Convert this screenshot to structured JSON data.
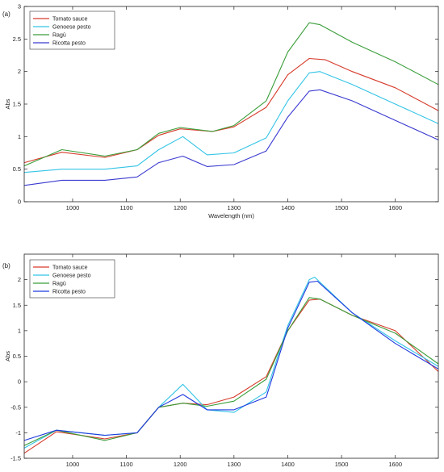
{
  "chart_data": [
    {
      "type": "line",
      "panel_label": "(a)",
      "xlabel": "Wavelength (nm)",
      "ylabel": "Abs",
      "xlim": [
        910,
        1680
      ],
      "ylim": [
        0,
        3
      ],
      "xticks": [
        1000,
        1100,
        1200,
        1300,
        1400,
        1500,
        1600
      ],
      "yticks": [
        0,
        0.5,
        1,
        1.5,
        2,
        2.5,
        3
      ],
      "xtick_labels": [
        "1000",
        "1100",
        "1200",
        "1300",
        "1400",
        "1500",
        "1600"
      ],
      "ytick_labels": [
        "0",
        "0.5",
        "1",
        "1.5",
        "2",
        "2.5",
        "3"
      ],
      "grid": false,
      "legend_position": "top-left",
      "series": [
        {
          "name": "Tomato sauce",
          "color": "#d63a2a",
          "x": [
            910,
            980,
            1060,
            1120,
            1160,
            1200,
            1260,
            1300,
            1360,
            1400,
            1440,
            1470,
            1520,
            1600,
            1680
          ],
          "y": [
            0.6,
            0.76,
            0.68,
            0.8,
            1.02,
            1.12,
            1.08,
            1.15,
            1.45,
            1.95,
            2.2,
            2.18,
            2.0,
            1.75,
            1.4
          ]
        },
        {
          "name": "Genoese pesto",
          "color": "#33c4e6",
          "x": [
            910,
            980,
            1060,
            1120,
            1160,
            1205,
            1250,
            1300,
            1360,
            1400,
            1440,
            1460,
            1520,
            1600,
            1680
          ],
          "y": [
            0.45,
            0.5,
            0.5,
            0.55,
            0.8,
            1.0,
            0.72,
            0.75,
            0.98,
            1.55,
            1.98,
            2.0,
            1.8,
            1.5,
            1.2
          ]
        },
        {
          "name": "Ragù",
          "color": "#3a9e3a",
          "x": [
            910,
            980,
            1060,
            1120,
            1160,
            1200,
            1260,
            1300,
            1360,
            1400,
            1440,
            1460,
            1520,
            1600,
            1680
          ],
          "y": [
            0.55,
            0.8,
            0.7,
            0.8,
            1.05,
            1.14,
            1.08,
            1.17,
            1.55,
            2.3,
            2.75,
            2.72,
            2.45,
            2.15,
            1.8
          ]
        },
        {
          "name": "Ricotta pesto",
          "color": "#3a3ad0",
          "x": [
            910,
            980,
            1060,
            1120,
            1160,
            1205,
            1250,
            1300,
            1360,
            1400,
            1440,
            1460,
            1520,
            1600,
            1680
          ],
          "y": [
            0.25,
            0.33,
            0.33,
            0.38,
            0.6,
            0.7,
            0.54,
            0.57,
            0.78,
            1.3,
            1.7,
            1.72,
            1.55,
            1.25,
            0.95
          ]
        }
      ]
    },
    {
      "type": "line",
      "panel_label": "(b)",
      "xlabel": "Wavelength (nm)",
      "ylabel": "Abs",
      "xlim": [
        910,
        1680
      ],
      "ylim": [
        -1.5,
        2.5
      ],
      "xticks": [
        1000,
        1100,
        1200,
        1300,
        1400,
        1500,
        1600
      ],
      "yticks": [
        -1.5,
        -1,
        -0.5,
        0,
        0.5,
        1,
        1.5,
        2
      ],
      "xtick_labels": [
        "1000",
        "1100",
        "1200",
        "1300",
        "1400",
        "1500",
        "1600"
      ],
      "ytick_labels": [
        "-1.5",
        "-1",
        "-0.5",
        "0",
        "0.5",
        "1",
        "1.5",
        "2"
      ],
      "grid": false,
      "legend_position": "top-left",
      "series": [
        {
          "name": "Tomato sauce",
          "color": "#d63a2a",
          "x": [
            910,
            970,
            1060,
            1120,
            1160,
            1205,
            1250,
            1300,
            1360,
            1400,
            1440,
            1460,
            1520,
            1600,
            1680
          ],
          "y": [
            -1.4,
            -0.98,
            -1.12,
            -1.0,
            -0.5,
            -0.42,
            -0.45,
            -0.3,
            0.1,
            1.0,
            1.6,
            1.62,
            1.3,
            1.0,
            0.2
          ]
        },
        {
          "name": "Genoese pesto",
          "color": "#33c4e6",
          "x": [
            910,
            970,
            1060,
            1120,
            1160,
            1205,
            1250,
            1300,
            1360,
            1400,
            1440,
            1450,
            1520,
            1600,
            1680
          ],
          "y": [
            -1.3,
            -0.95,
            -1.05,
            -1.0,
            -0.5,
            -0.05,
            -0.55,
            -0.6,
            -0.2,
            1.1,
            2.0,
            2.05,
            1.35,
            0.8,
            0.3
          ]
        },
        {
          "name": "Ragù",
          "color": "#3a9e3a",
          "x": [
            910,
            970,
            1060,
            1120,
            1160,
            1205,
            1250,
            1300,
            1360,
            1400,
            1440,
            1460,
            1520,
            1600,
            1680
          ],
          "y": [
            -1.25,
            -0.95,
            -1.15,
            -1.0,
            -0.5,
            -0.42,
            -0.48,
            -0.38,
            0.05,
            1.0,
            1.65,
            1.62,
            1.3,
            0.95,
            0.35
          ]
        },
        {
          "name": "Ricotta pesto",
          "color": "#1f3adf",
          "x": [
            910,
            970,
            1060,
            1120,
            1160,
            1205,
            1250,
            1300,
            1360,
            1400,
            1440,
            1455,
            1520,
            1600,
            1680
          ],
          "y": [
            -1.15,
            -0.95,
            -1.05,
            -1.0,
            -0.5,
            -0.25,
            -0.55,
            -0.55,
            -0.3,
            1.05,
            1.95,
            1.97,
            1.35,
            0.75,
            0.25
          ]
        }
      ]
    }
  ]
}
